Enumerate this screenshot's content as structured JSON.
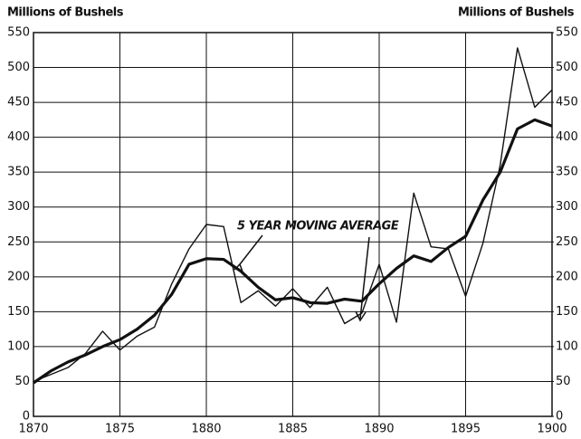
{
  "chart_data": {
    "type": "line",
    "ylabel": "Millions of Bushels",
    "y2label": "Millions of Bushels",
    "annotation": "5 YEAR MOVING AVERAGE",
    "x": [
      1870,
      1871,
      1872,
      1873,
      1874,
      1875,
      1876,
      1877,
      1878,
      1879,
      1880,
      1881,
      1882,
      1883,
      1884,
      1885,
      1886,
      1887,
      1888,
      1889,
      1890,
      1891,
      1892,
      1893,
      1894,
      1895,
      1896,
      1897,
      1898,
      1899,
      1900
    ],
    "series": [
      {
        "values": [
          50,
          60,
          70,
          90,
          122,
          95,
          115,
          128,
          190,
          240,
          275,
          272,
          163,
          180,
          158,
          183,
          156,
          185,
          133,
          148,
          218,
          135,
          320,
          243,
          240,
          172,
          248,
          360,
          528,
          443,
          468
        ],
        "color": "#111111",
        "width": 1.4
      },
      {
        "values": [
          48,
          65,
          78,
          88,
          100,
          110,
          125,
          145,
          175,
          218,
          226,
          225,
          208,
          185,
          167,
          170,
          163,
          162,
          168,
          165,
          190,
          212,
          230,
          222,
          242,
          258,
          310,
          350,
          412,
          425,
          416
        ],
        "color": "#111111",
        "width": 3.2
      }
    ],
    "xlim": [
      1870,
      1900
    ],
    "xticks": [
      1870,
      1875,
      1880,
      1885,
      1890,
      1895,
      1900
    ],
    "ylim": [
      0,
      550
    ],
    "yticks": [
      0,
      50,
      100,
      150,
      200,
      250,
      300,
      350,
      400,
      450,
      500,
      550
    ],
    "y2lim": [
      0,
      550
    ],
    "y2ticks": [
      0,
      50,
      100,
      150,
      200,
      250,
      300,
      350,
      400,
      450,
      500,
      550
    ],
    "grid": true
  }
}
